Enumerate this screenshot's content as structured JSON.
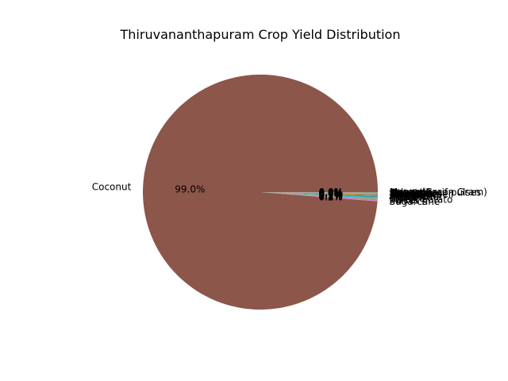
{
  "chart_data": {
    "type": "pie",
    "title": "Thiruvananthapuram Crop Yield Distribution",
    "legend": "none",
    "slices": [
      {
        "label": "Coconut",
        "percent": 99.0,
        "pct_label": "99.0%",
        "color": "#8c564b"
      },
      {
        "label": "Sugarcane",
        "percent": 0.2,
        "pct_label": "0.2%",
        "color": "#e377c2"
      },
      {
        "label": "Pulses",
        "percent": 0.1,
        "pct_label": "0.1%",
        "color": "#7f7f7f"
      },
      {
        "label": "Sweet potato",
        "percent": 0.1,
        "pct_label": "0.1%",
        "color": "#bcbd22"
      },
      {
        "label": "Tapioca",
        "percent": 0.2,
        "pct_label": "0.2%",
        "color": "#17becf"
      },
      {
        "label": "Cashewnut",
        "percent": 0.1,
        "pct_label": "0.1%",
        "color": "#1f77b4"
      },
      {
        "label": "Arecanut",
        "percent": 0.1,
        "pct_label": "0.1%",
        "color": "#ff7f0e"
      },
      {
        "label": "Banana",
        "percent": 0.1,
        "pct_label": "0.1%",
        "color": "#2ca02c"
      },
      {
        "label": "Ginger",
        "percent": 0.0,
        "pct_label": "0.0%",
        "color": "#d62728"
      },
      {
        "label": "Turmeric",
        "percent": 0.0,
        "pct_label": "0.0%",
        "color": "#9467bd"
      },
      {
        "label": "Rice",
        "percent": 0.0,
        "pct_label": "0.0%",
        "color": "#8c564b"
      },
      {
        "label": "Dry chillies",
        "percent": 0.0,
        "pct_label": "0.0%",
        "color": "#e377c2"
      },
      {
        "label": "Black pepper",
        "percent": 0.0,
        "pct_label": "0.0%",
        "color": "#7f7f7f"
      },
      {
        "label": "Cardamom",
        "percent": 0.0,
        "pct_label": "0.0%",
        "color": "#bcbd22"
      },
      {
        "label": "Jack Fruit",
        "percent": 0.0,
        "pct_label": "0.0%",
        "color": "#17becf"
      },
      {
        "label": "Mango",
        "percent": 0.0,
        "pct_label": "0.0%",
        "color": "#1f77b4"
      },
      {
        "label": "Papaya",
        "percent": 0.0,
        "pct_label": "0.0%",
        "color": "#ff7f0e"
      },
      {
        "label": "Pineapple",
        "percent": 0.0,
        "pct_label": "0.0%",
        "color": "#2ca02c"
      },
      {
        "label": "Other Kharif pulses",
        "percent": 0.0,
        "pct_label": "0.0%",
        "color": "#d62728"
      },
      {
        "label": "Moong(Green Gram)",
        "percent": 0.0,
        "pct_label": "0.0%",
        "color": "#9467bd"
      }
    ]
  }
}
